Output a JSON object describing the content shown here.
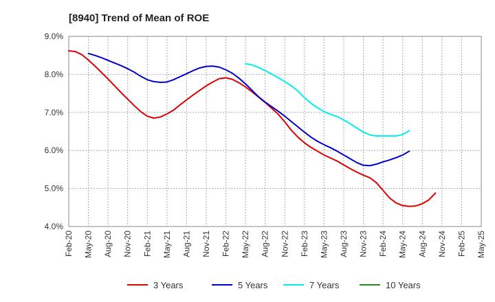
{
  "chart_data": {
    "type": "line",
    "title": "[8940]  Trend of Mean of ROE",
    "xlabel": "",
    "ylabel": "",
    "ylim": [
      4.0,
      9.0
    ],
    "y_ticks": [
      "4.0%",
      "5.0%",
      "6.0%",
      "7.0%",
      "8.0%",
      "9.0%"
    ],
    "y_tick_values": [
      4.0,
      5.0,
      6.0,
      7.0,
      8.0,
      9.0
    ],
    "x_tick_labels": [
      "Feb-20",
      "May-20",
      "Aug-20",
      "Nov-20",
      "Feb-21",
      "May-21",
      "Aug-21",
      "Nov-21",
      "Feb-22",
      "May-22",
      "Aug-22",
      "Nov-22",
      "Feb-23",
      "May-23",
      "Aug-23",
      "Nov-23",
      "Feb-24",
      "May-24",
      "Aug-24",
      "Nov-24",
      "Feb-25",
      "May-25"
    ],
    "grid": true,
    "legend_position": "bottom",
    "series": [
      {
        "name": "3 Years",
        "color": "#dd0000",
        "start_index": 0,
        "values": [
          8.62,
          8.6,
          8.52,
          8.38,
          8.22,
          8.05,
          7.88,
          7.7,
          7.52,
          7.35,
          7.18,
          7.02,
          6.9,
          6.85,
          6.88,
          6.96,
          7.06,
          7.2,
          7.33,
          7.46,
          7.58,
          7.7,
          7.8,
          7.89,
          7.91,
          7.87,
          7.78,
          7.67,
          7.54,
          7.4,
          7.26,
          7.11,
          6.95,
          6.75,
          6.53,
          6.35,
          6.2,
          6.08,
          5.98,
          5.88,
          5.8,
          5.72,
          5.62,
          5.52,
          5.43,
          5.35,
          5.28,
          5.15,
          4.95,
          4.75,
          4.62,
          4.55,
          4.53,
          4.54,
          4.6,
          4.7,
          4.88
        ]
      },
      {
        "name": "5 Years",
        "color": "#0000cc",
        "start_index": 3,
        "values": [
          8.55,
          8.5,
          8.44,
          8.37,
          8.3,
          8.23,
          8.15,
          8.06,
          7.95,
          7.86,
          7.81,
          7.79,
          7.8,
          7.86,
          7.94,
          8.02,
          8.1,
          8.17,
          8.21,
          8.22,
          8.19,
          8.12,
          8.03,
          7.9,
          7.75,
          7.58,
          7.41,
          7.27,
          7.15,
          7.03,
          6.9,
          6.76,
          6.62,
          6.48,
          6.35,
          6.24,
          6.15,
          6.07,
          5.98,
          5.88,
          5.78,
          5.68,
          5.61,
          5.6,
          5.64,
          5.7,
          5.75,
          5.81,
          5.88,
          5.98
        ]
      },
      {
        "name": "7 Years",
        "color": "#00eeee",
        "start_index": 27,
        "values": [
          8.28,
          8.25,
          8.18,
          8.1,
          8.01,
          7.91,
          7.81,
          7.7,
          7.56,
          7.39,
          7.24,
          7.12,
          7.02,
          6.95,
          6.89,
          6.8,
          6.7,
          6.59,
          6.48,
          6.41,
          6.38,
          6.38,
          6.38,
          6.38,
          6.42,
          6.52
        ]
      },
      {
        "name": "10 Years",
        "color": "#228822",
        "start_index": 0,
        "values": []
      }
    ]
  }
}
